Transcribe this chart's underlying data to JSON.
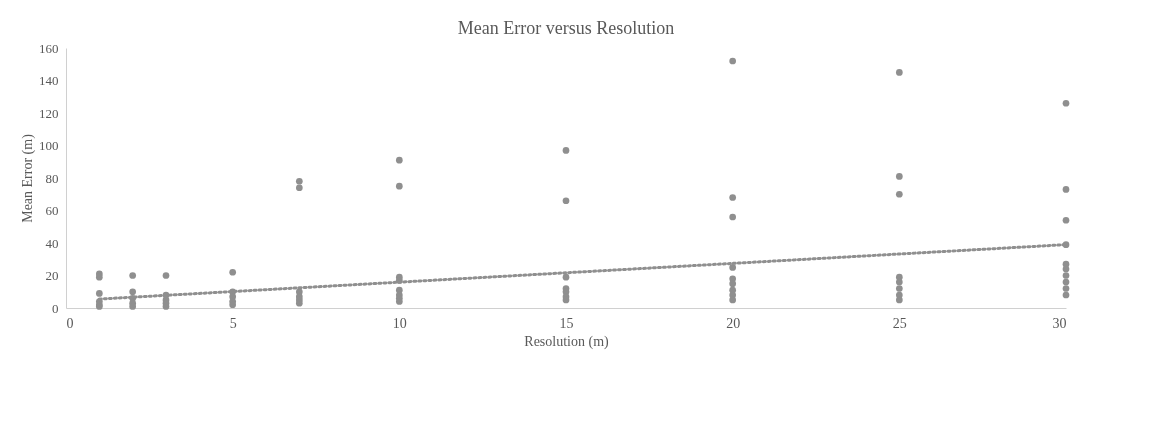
{
  "chart_data": {
    "type": "scatter",
    "title": "Mean Error versus Resolution",
    "xlabel": "Resolution (m)",
    "ylabel": "Mean Error (m)",
    "xlim": [
      0,
      30
    ],
    "xticks": [
      0,
      5,
      10,
      15,
      20,
      25,
      30
    ],
    "ylim": [
      0,
      160
    ],
    "yticks": [
      0,
      20,
      40,
      60,
      80,
      100,
      120,
      140,
      160
    ],
    "grid": false,
    "marker": "circle",
    "series": [
      {
        "color": "#8f8f8f",
        "x": [
          1,
          1,
          1,
          1,
          1,
          1,
          2,
          2,
          2,
          2,
          2,
          3,
          3,
          3,
          3,
          3,
          5,
          5,
          5,
          5,
          5,
          7,
          7,
          7,
          7,
          7,
          7,
          10,
          10,
          10,
          10,
          10,
          10,
          10,
          10,
          15,
          15,
          15,
          15,
          15,
          15,
          15,
          20,
          20,
          20,
          20,
          20,
          20,
          20,
          20,
          20,
          25,
          25,
          25,
          25,
          25,
          25,
          25,
          25,
          30,
          30,
          30,
          30,
          30,
          30,
          30,
          30,
          30,
          30
        ],
        "values": [
          21,
          19,
          9,
          4,
          2,
          1,
          20,
          10,
          6,
          3,
          1,
          20,
          8,
          5,
          3,
          1,
          22,
          10,
          7,
          4,
          2,
          78,
          74,
          10,
          7,
          5,
          3,
          91,
          75,
          19,
          17,
          11,
          8,
          6,
          4,
          97,
          66,
          19,
          12,
          10,
          7,
          5,
          152,
          68,
          56,
          25,
          18,
          15,
          11,
          8,
          5,
          145,
          81,
          70,
          19,
          16,
          12,
          8,
          5,
          126,
          73,
          54,
          39,
          27,
          24,
          20,
          16,
          12,
          8
        ]
      },
      {
        "type": "line",
        "color": "#8f8f8f",
        "line_style": "dotted",
        "marker": "none",
        "x": [
          1,
          30
        ],
        "values": [
          5.5,
          39
        ]
      }
    ]
  }
}
